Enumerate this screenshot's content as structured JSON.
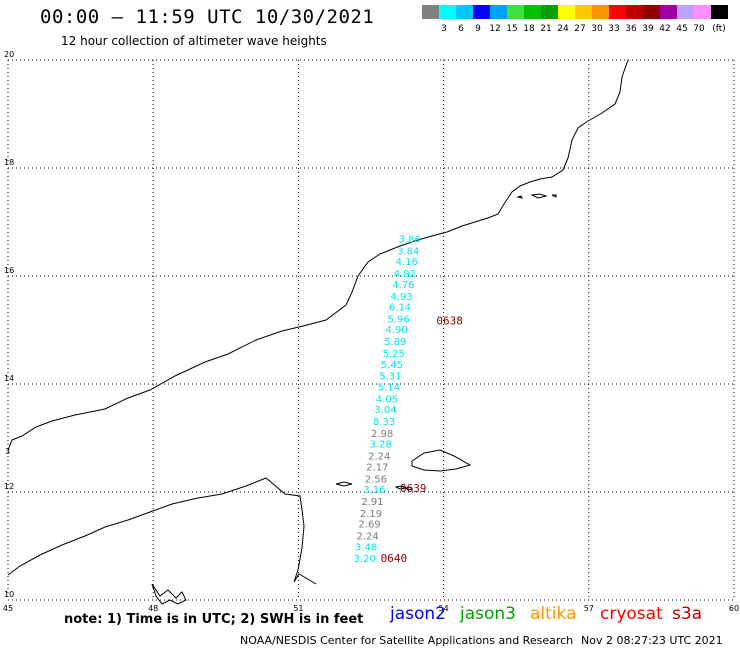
{
  "header": {
    "title": "00:00 – 11:59 UTC 10/30/2021",
    "subtitle": "12 hour collection of altimeter wave heights"
  },
  "colorbar": {
    "colors": [
      "#808080",
      "#00ffff",
      "#00c8ff",
      "#0000ff",
      "#00a0ff",
      "#40e040",
      "#00c000",
      "#00a000",
      "#ffff00",
      "#ffc800",
      "#ff9600",
      "#ff0000",
      "#c00000",
      "#900000",
      "#a000a0",
      "#c0a0ff",
      "#ff90ff",
      "#000000"
    ],
    "labels": [
      "3",
      "6",
      "9",
      "12",
      "15",
      "18",
      "21",
      "24",
      "27",
      "30",
      "33",
      "36",
      "39",
      "42",
      "45",
      "70"
    ],
    "unit": "(ft)"
  },
  "map": {
    "lon_range": [
      45,
      60
    ],
    "lat_range": [
      10,
      20
    ],
    "x_ticks": [
      "45",
      "48",
      "51",
      "54",
      "57",
      "60"
    ],
    "y_ticks": [
      "20",
      "18",
      "16",
      "14",
      "12",
      "10"
    ],
    "extra_y_label": "3"
  },
  "observations": [
    {
      "lat": 16.62,
      "lon": 53.3,
      "value": "3.86",
      "color": "#00e8f0"
    },
    {
      "lat": 16.4,
      "lon": 53.27,
      "value": "3.84",
      "color": "#00e8f0"
    },
    {
      "lat": 16.2,
      "lon": 53.24,
      "value": "4.16",
      "color": "#00e8f0"
    },
    {
      "lat": 15.98,
      "lon": 53.2,
      "value": "4.92",
      "color": "#00e8f0"
    },
    {
      "lat": 15.78,
      "lon": 53.17,
      "value": "4.76",
      "color": "#00e8f0"
    },
    {
      "lat": 15.56,
      "lon": 53.13,
      "value": "4.93",
      "color": "#00e8f0"
    },
    {
      "lat": 15.36,
      "lon": 53.1,
      "value": "6.14",
      "color": "#00e8f0"
    },
    {
      "lat": 15.14,
      "lon": 53.07,
      "value": "5.96",
      "color": "#00e8f0"
    },
    {
      "lat": 14.94,
      "lon": 53.03,
      "value": "4.90",
      "color": "#00e8f0"
    },
    {
      "lat": 14.72,
      "lon": 53.0,
      "value": "5.89",
      "color": "#00e8f0"
    },
    {
      "lat": 14.5,
      "lon": 52.97,
      "value": "5.25",
      "color": "#00e8f0"
    },
    {
      "lat": 14.3,
      "lon": 52.93,
      "value": "5.45",
      "color": "#00e8f0"
    },
    {
      "lat": 14.08,
      "lon": 52.9,
      "value": "5.31",
      "color": "#00e8f0"
    },
    {
      "lat": 13.88,
      "lon": 52.87,
      "value": "5.14",
      "color": "#00e8f0"
    },
    {
      "lat": 13.66,
      "lon": 52.83,
      "value": "4.05",
      "color": "#00e8f0"
    },
    {
      "lat": 13.46,
      "lon": 52.8,
      "value": "3.04",
      "color": "#00e8f0"
    },
    {
      "lat": 13.24,
      "lon": 52.77,
      "value": "8.33",
      "color": "#00e8f0"
    },
    {
      "lat": 13.02,
      "lon": 52.73,
      "value": "2.98",
      "color": "#7a7a7a"
    },
    {
      "lat": 12.82,
      "lon": 52.7,
      "value": "3.28",
      "color": "#00e8f0"
    },
    {
      "lat": 12.6,
      "lon": 52.67,
      "value": "2.24",
      "color": "#7a7a7a"
    },
    {
      "lat": 12.4,
      "lon": 52.63,
      "value": "2.17",
      "color": "#7a7a7a"
    },
    {
      "lat": 12.18,
      "lon": 52.6,
      "value": "2.56",
      "color": "#7a7a7a"
    },
    {
      "lat": 11.98,
      "lon": 52.57,
      "value": "3.16",
      "color": "#00e8f0"
    },
    {
      "lat": 11.76,
      "lon": 52.53,
      "value": "2.91",
      "color": "#7a7a7a"
    },
    {
      "lat": 11.54,
      "lon": 52.5,
      "value": "2.19",
      "color": "#7a7a7a"
    },
    {
      "lat": 11.34,
      "lon": 52.47,
      "value": "2.69",
      "color": "#7a7a7a"
    },
    {
      "lat": 11.12,
      "lon": 52.43,
      "value": "2.24",
      "color": "#7a7a7a"
    },
    {
      "lat": 10.92,
      "lon": 52.4,
      "value": "3.48",
      "color": "#00e8f0"
    },
    {
      "lat": 10.7,
      "lon": 52.37,
      "value": "3.20",
      "color": "#00e8f0"
    }
  ],
  "time_labels": [
    {
      "lat": 15.1,
      "lon": 53.85,
      "text": "0638"
    },
    {
      "lat": 12.0,
      "lon": 53.1,
      "text": "0639"
    },
    {
      "lat": 10.7,
      "lon": 52.7,
      "text": "0640"
    }
  ],
  "time_label_color": "#8b0000",
  "footer": {
    "note": "note: 1) Time is in UTC; 2) SWH is in feet",
    "satellites": [
      {
        "name": "jason2",
        "color": "#0000ff"
      },
      {
        "name": "jason3",
        "color": "#00a000"
      },
      {
        "name": "altika",
        "color": "#ff9600"
      },
      {
        "name": "cryosat",
        "color": "#ff0000"
      },
      {
        "name": "s3a",
        "color": "#c00000"
      }
    ],
    "credit": "NOAA/NESDIS Center for Satellite Applications and Research",
    "date": "Nov  2 08:27:23 UTC 2021"
  }
}
